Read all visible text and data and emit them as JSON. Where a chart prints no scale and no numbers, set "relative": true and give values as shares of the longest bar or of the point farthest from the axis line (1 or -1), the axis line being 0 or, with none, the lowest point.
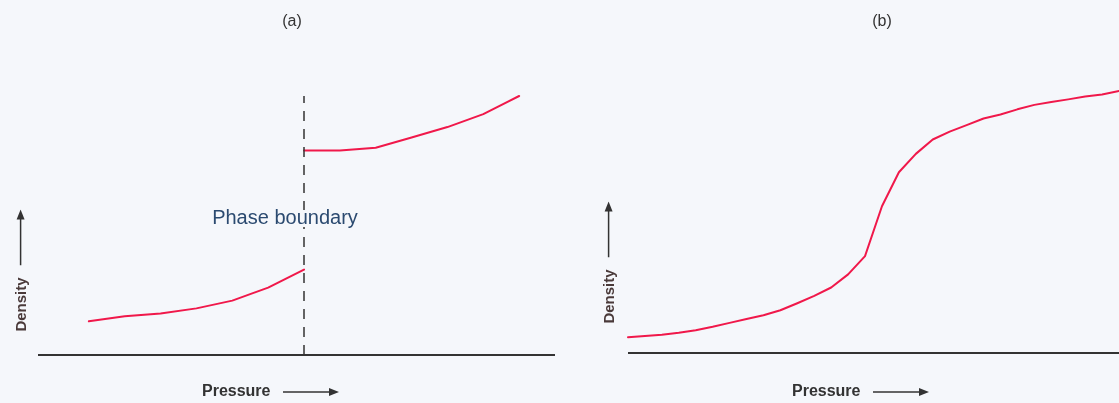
{
  "chart_data": [
    {
      "type": "line",
      "title": "(a)",
      "xlabel": "Pressure",
      "ylabel": "Density",
      "relative": true,
      "grid": false,
      "legend": false,
      "marker": "none",
      "line_style": "solid",
      "categories": [
        null,
        null,
        null,
        null,
        null,
        null,
        null,
        null,
        null,
        null,
        null,
        null,
        null,
        null,
        null
      ],
      "series": [
        {
          "color": "#f0184a",
          "values": [
            null,
            0.13,
            0.15,
            0.16,
            0.18,
            0.21,
            0.26,
            0.33,
            null,
            null,
            null,
            null,
            null,
            null,
            null
          ]
        },
        {
          "color": "#f0184a",
          "values": [
            null,
            null,
            null,
            null,
            null,
            null,
            null,
            0.79,
            0.79,
            0.8,
            0.84,
            0.88,
            0.93,
            1.0,
            null
          ]
        }
      ],
      "ref_lines": [
        {
          "axis": "x",
          "label": "Phase boundary",
          "color": "#333333",
          "line_style": "dashed"
        }
      ]
    },
    {
      "type": "line",
      "title": "(b)",
      "xlabel": "Pressure",
      "ylabel": "Density",
      "relative": true,
      "grid": false,
      "legend": false,
      "marker": "none",
      "line_style": "solid",
      "categories": [
        null,
        null,
        null,
        null,
        null,
        null,
        null,
        null,
        null,
        null,
        null,
        null,
        null,
        null,
        null,
        null,
        null,
        null,
        null,
        null,
        null,
        null,
        null,
        null,
        null,
        null,
        null,
        null,
        null,
        null
      ],
      "series": [
        {
          "color": "#f0184a",
          "values": [
            0.06,
            0.065,
            0.07,
            0.077,
            0.087,
            0.1,
            0.115,
            0.13,
            0.144,
            0.163,
            0.19,
            0.218,
            0.25,
            0.3,
            0.37,
            0.56,
            0.69,
            0.76,
            0.815,
            0.845,
            0.87,
            0.895,
            0.91,
            0.93,
            0.947,
            0.958,
            0.968,
            0.979,
            0.987,
            1.0
          ]
        }
      ]
    }
  ]
}
